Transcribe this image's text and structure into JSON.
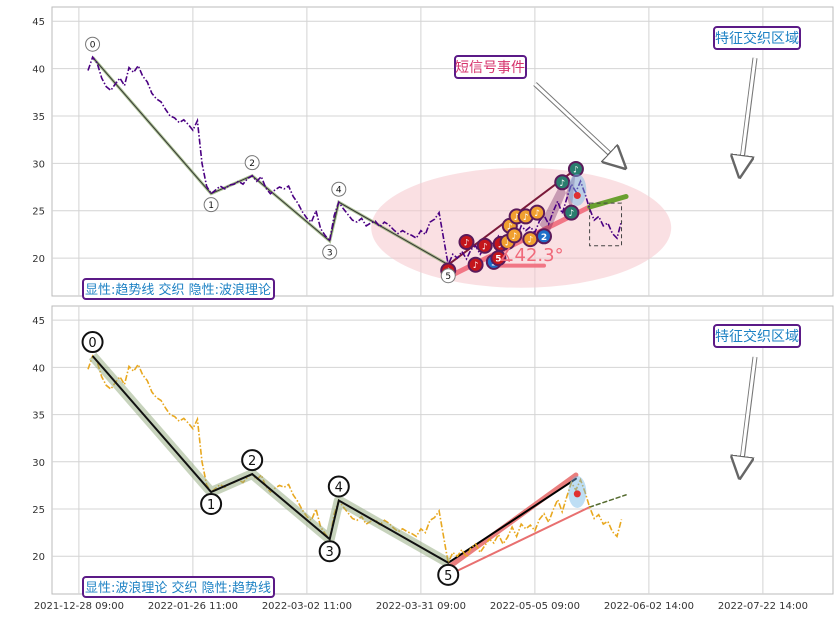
{
  "chart_data": [
    {
      "type": "line",
      "panel": "top",
      "ylim": [
        16,
        46.5
      ],
      "yticks": [
        20,
        25,
        30,
        35,
        40,
        45
      ],
      "grid": true,
      "price_color": "#4b0082",
      "price_series": [
        [
          0,
          39.8
        ],
        [
          1,
          41.2
        ],
        [
          2,
          40.6
        ],
        [
          3,
          39.0
        ],
        [
          4,
          38.1
        ],
        [
          5,
          37.7
        ],
        [
          6,
          38.4
        ],
        [
          7,
          39.0
        ],
        [
          8,
          38.2
        ],
        [
          9,
          40.1
        ],
        [
          10,
          39.6
        ],
        [
          11,
          40.3
        ],
        [
          12,
          39.2
        ],
        [
          13,
          38.6
        ],
        [
          14,
          37.4
        ],
        [
          15,
          36.8
        ],
        [
          16,
          36.5
        ],
        [
          17,
          35.7
        ],
        [
          18,
          35.0
        ],
        [
          19,
          34.8
        ],
        [
          20,
          34.3
        ],
        [
          21,
          34.6
        ],
        [
          22,
          34.1
        ],
        [
          23,
          33.5
        ],
        [
          24,
          34.5
        ],
        [
          25,
          30.0
        ],
        [
          26,
          27.6
        ],
        [
          27,
          26.8
        ],
        [
          28,
          27.2
        ],
        [
          29,
          27.6
        ],
        [
          30,
          27.3
        ],
        [
          31,
          27.7
        ],
        [
          32,
          27.8
        ],
        [
          33,
          28.1
        ],
        [
          34,
          27.8
        ],
        [
          35,
          28.4
        ],
        [
          36,
          28.7
        ],
        [
          37,
          28.1
        ],
        [
          38,
          28.6
        ],
        [
          39,
          27.4
        ],
        [
          40,
          26.8
        ],
        [
          41,
          27.2
        ],
        [
          42,
          27.5
        ],
        [
          43,
          27.3
        ],
        [
          44,
          27.6
        ],
        [
          45,
          26.5
        ],
        [
          46,
          25.8
        ],
        [
          47,
          24.9
        ],
        [
          48,
          24.2
        ],
        [
          49,
          23.8
        ],
        [
          50,
          25.0
        ],
        [
          51,
          23.1
        ],
        [
          52,
          22.4
        ],
        [
          53,
          21.8
        ],
        [
          54,
          24.5
        ],
        [
          55,
          25.9
        ],
        [
          56,
          25.2
        ],
        [
          57,
          24.6
        ],
        [
          58,
          24.0
        ],
        [
          59,
          23.8
        ],
        [
          60,
          24.2
        ],
        [
          61,
          23.4
        ],
        [
          62,
          23.7
        ],
        [
          63,
          23.9
        ],
        [
          64,
          23.3
        ],
        [
          65,
          23.8
        ],
        [
          66,
          23.5
        ],
        [
          67,
          23.0
        ],
        [
          68,
          22.6
        ],
        [
          69,
          22.9
        ],
        [
          70,
          22.6
        ],
        [
          71,
          22.4
        ],
        [
          72,
          22.1
        ],
        [
          73,
          22.9
        ],
        [
          74,
          22.5
        ],
        [
          75,
          23.8
        ],
        [
          76,
          24.1
        ],
        [
          77,
          24.8
        ],
        [
          78,
          22.0
        ],
        [
          79,
          19.3
        ],
        [
          80,
          20.4
        ],
        [
          81,
          20.0
        ],
        [
          82,
          20.7
        ],
        [
          83,
          19.9
        ],
        [
          84,
          20.9
        ],
        [
          85,
          21.3
        ],
        [
          86,
          20.4
        ],
        [
          87,
          21.1
        ],
        [
          88,
          21.8
        ],
        [
          89,
          21.4
        ],
        [
          90,
          22.3
        ],
        [
          91,
          21.3
        ],
        [
          92,
          22.0
        ],
        [
          93,
          23.1
        ],
        [
          94,
          22.1
        ],
        [
          95,
          23.4
        ],
        [
          96,
          22.9
        ],
        [
          97,
          23.3
        ],
        [
          98,
          22.7
        ],
        [
          99,
          23.9
        ],
        [
          100,
          24.5
        ],
        [
          101,
          23.6
        ],
        [
          102,
          24.9
        ],
        [
          103,
          26.0
        ],
        [
          104,
          24.7
        ],
        [
          105,
          26.3
        ],
        [
          106,
          27.8
        ],
        [
          107,
          27.0
        ],
        [
          108,
          28.1
        ],
        [
          109,
          26.8
        ],
        [
          110,
          25.2
        ],
        [
          111,
          24.0
        ],
        [
          112,
          24.4
        ],
        [
          113,
          23.4
        ],
        [
          114,
          23.7
        ],
        [
          115,
          22.6
        ],
        [
          116,
          22.1
        ],
        [
          117,
          23.9
        ]
      ],
      "wave_points": [
        {
          "label": "0",
          "x": 1,
          "y": 41.2
        },
        {
          "label": "1",
          "x": 27,
          "y": 26.8
        },
        {
          "label": "2",
          "x": 36,
          "y": 28.7
        },
        {
          "label": "3",
          "x": 53,
          "y": 21.8
        },
        {
          "label": "4",
          "x": 55,
          "y": 25.9
        },
        {
          "label": "5",
          "x": 79,
          "y": 19.3
        }
      ],
      "signal_markers": [
        [
          79,
          18.7,
          "♪",
          "#c4161c"
        ],
        [
          83,
          21.7,
          "♪",
          "#c4161c"
        ],
        [
          85,
          19.3,
          "♪",
          "#c4161c"
        ],
        [
          87,
          21.3,
          "♪",
          "#c4161c"
        ],
        [
          89,
          19.6,
          "1",
          "#1e6fc9"
        ],
        [
          90,
          20.0,
          "5",
          "#c4161c"
        ],
        [
          90.5,
          21.5,
          "♪",
          "#c4161c"
        ],
        [
          92,
          21.7,
          "♪",
          "#f0a030"
        ],
        [
          92.5,
          23.4,
          "♪",
          "#f0a030"
        ],
        [
          93.5,
          22.4,
          "♪",
          "#f0a030"
        ],
        [
          94,
          24.4,
          "♪",
          "#f0a030"
        ],
        [
          96,
          24.4,
          "♪",
          "#f0a030"
        ],
        [
          97,
          22.0,
          "♪",
          "#f0a030"
        ],
        [
          98.5,
          24.8,
          "♪",
          "#f0a030"
        ],
        [
          100,
          22.3,
          "2",
          "#1e6fc9"
        ],
        [
          104,
          28.0,
          "♪",
          "#2a7d6e"
        ],
        [
          106,
          24.8,
          "♪",
          "#2a7d6e"
        ],
        [
          107,
          29.4,
          "♪",
          "#2a7d6e"
        ]
      ],
      "angle_label": "∡42.3°",
      "labels": {
        "short_signal": "短信号事件",
        "feature_zone": "特征交织区域",
        "legend": "显性:趋势线 交织 隐性:波浪理论"
      },
      "colors": {
        "accent_pink": "#f06a7a",
        "zone_fill": "#f6c6cc",
        "wave_line": "#556b2f",
        "label_border": "#5b1a87",
        "label_text": "#1e82c4",
        "signal_text": "#d6336c"
      }
    },
    {
      "type": "line",
      "panel": "bottom",
      "ylim": [
        16,
        46.5
      ],
      "yticks": [
        20,
        25,
        30,
        35,
        40,
        45
      ],
      "grid": true,
      "price_color": "#e8a820",
      "price_series": "same_as_top",
      "wave_points": [
        {
          "label": "0",
          "x": 1,
          "y": 41.2
        },
        {
          "label": "1",
          "x": 27,
          "y": 26.8
        },
        {
          "label": "2",
          "x": 36,
          "y": 28.7
        },
        {
          "label": "3",
          "x": 53,
          "y": 21.8
        },
        {
          "label": "4",
          "x": 55,
          "y": 25.9
        },
        {
          "label": "5",
          "x": 79,
          "y": 19.3
        }
      ],
      "labels": {
        "feature_zone": "特征交织区域",
        "legend": "显性:波浪理论 交织 隐性:趋势线"
      }
    }
  ],
  "x_axis": {
    "tick_labels": [
      "2021-12-28 09:00",
      "2022-01-26 11:00",
      "2022-03-02 11:00",
      "2022-03-31 09:00",
      "2022-05-05 09:00",
      "2022-06-02 14:00",
      "2022-07-22 14:00"
    ],
    "tick_index": [
      -2,
      23,
      48,
      73,
      98,
      123,
      148
    ]
  }
}
